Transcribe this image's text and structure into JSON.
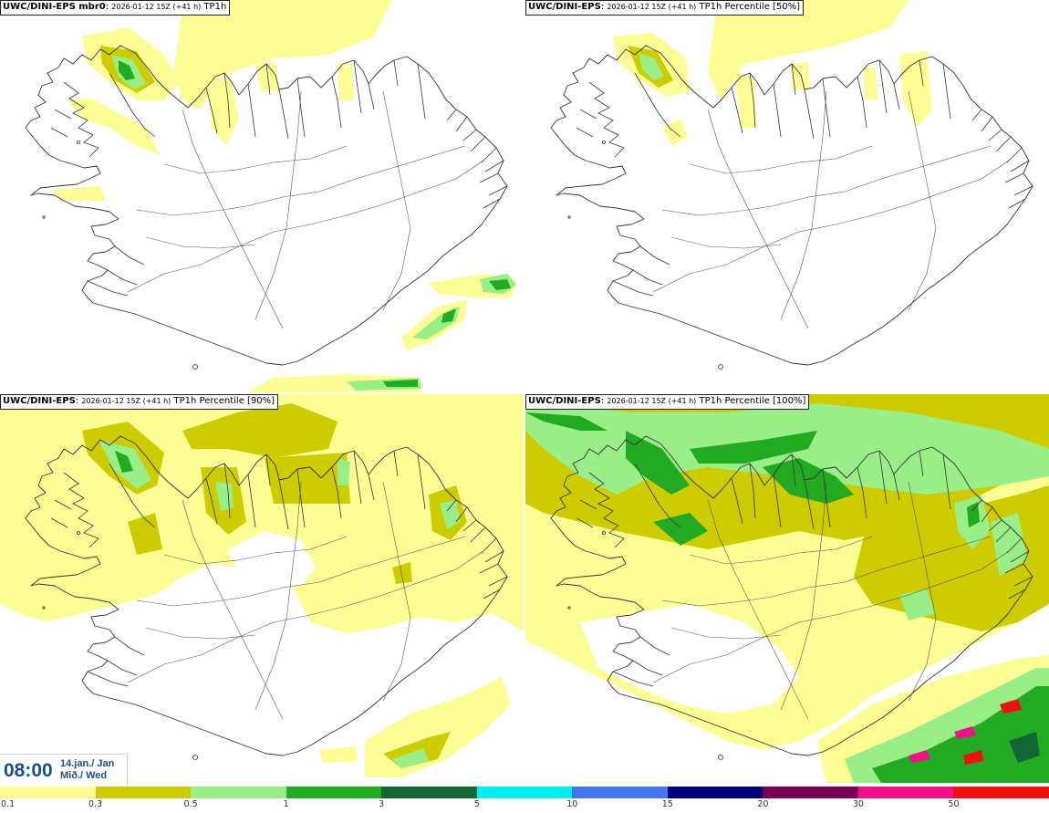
{
  "panels": [
    {
      "model": "UWC/DINI-EPS mbr0",
      "run": "2026-01-12 15Z (+41 h)",
      "field": "TP1h"
    },
    {
      "model": "UWC/DINI-EPS",
      "run": "2026-01-12 15Z (+41 h)",
      "field": "TP1h Percentile [50%]"
    },
    {
      "model": "UWC/DINI-EPS",
      "run": "2026-01-12 15Z (+41 h)",
      "field": "TP1h Percentile [90%]"
    },
    {
      "model": "UWC/DINI-EPS",
      "run": "2026-01-12 15Z (+41 h)",
      "field": "TP1h Percentile [100%]"
    }
  ],
  "valid_time": {
    "time": "08:00",
    "date_line1": "14.jan./ Jan",
    "date_line2": "Mið./ Wed"
  },
  "legend": {
    "labels": [
      "0.1",
      "0.3",
      "0.5",
      "1",
      "3",
      "5",
      "10",
      "15",
      "20",
      "30",
      "50"
    ],
    "colors": [
      "#fdfd96",
      "#cccc00",
      "#99ee88",
      "#22aa22",
      "#116633",
      "#00f0f0",
      "#4477ee",
      "#000077",
      "#770055",
      "#ee1188",
      "#ee1111"
    ]
  },
  "field_colors": {
    "white": "#ffffff",
    "light_yellow": "#fdfd96",
    "olive": "#cccc00",
    "light_green": "#99ee88",
    "green": "#22aa22",
    "dark_green": "#116633",
    "pink": "#ee1188",
    "red": "#ee1111"
  },
  "map": {
    "coastline_color": "#333333",
    "road_color": "#555555"
  }
}
